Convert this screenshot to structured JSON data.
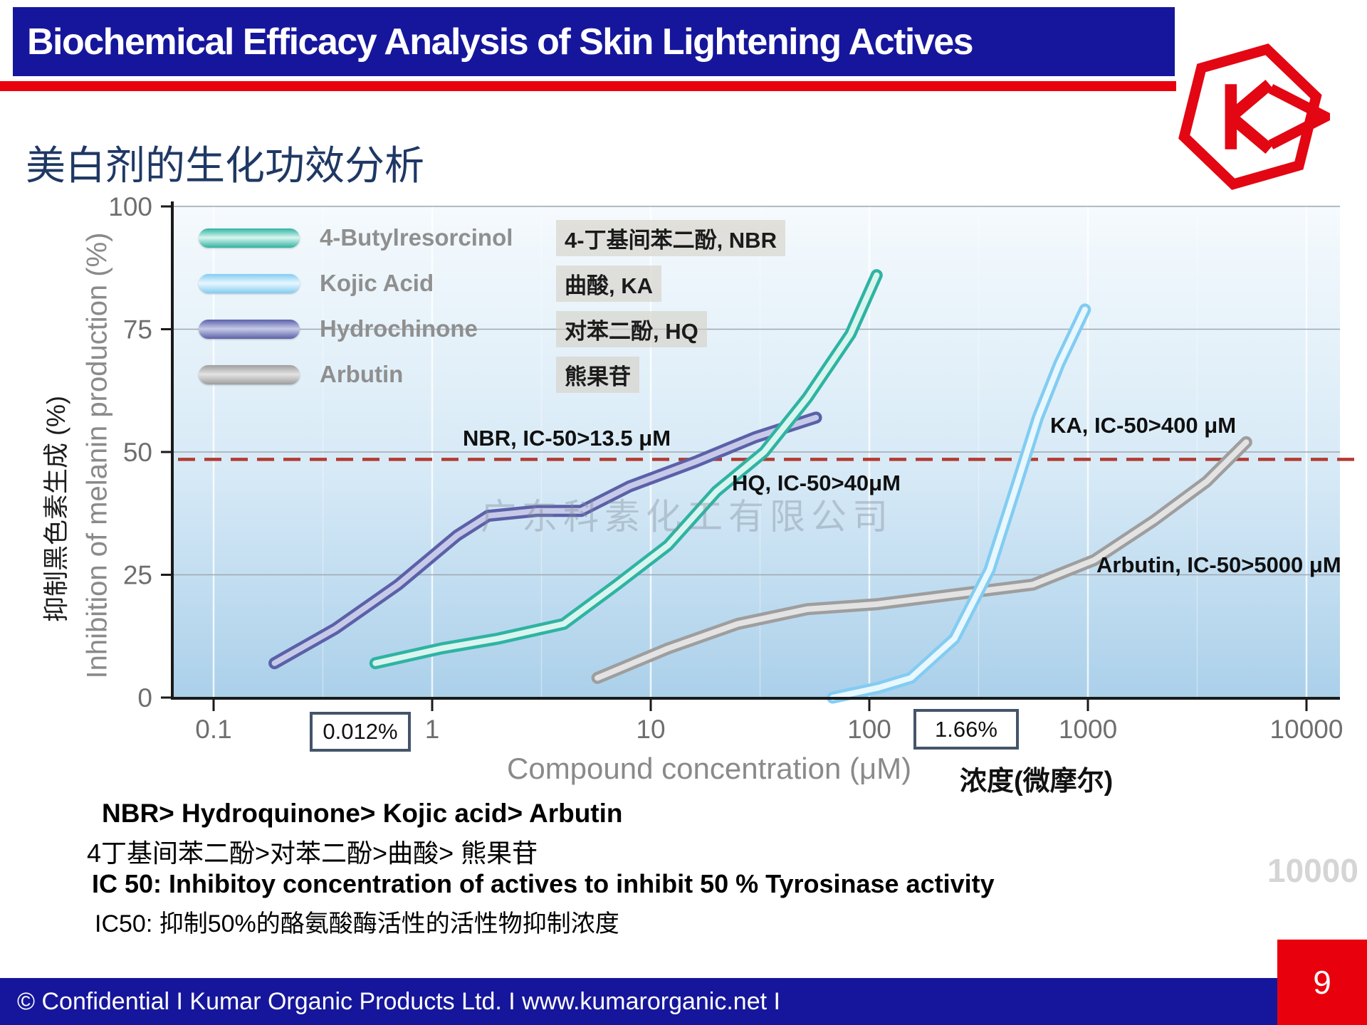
{
  "slide": {
    "title": "Biochemical Efficacy Analysis of Skin Lightening Actives",
    "subtitle_zh": "美白剂的生化功效分析",
    "page_number": "9",
    "footer_text": "© Confidential I Kumar Organic Products Ltd. I www.kumarorganic.net I",
    "ghost_text": "10000"
  },
  "colors": {
    "header_blue": "#16169c",
    "accent_red": "#e8000d",
    "reference_dash_red": "#b23b32",
    "subtitle_navy": "#1f3864",
    "plot_bg_top": "#f5fafd",
    "plot_bg_bottom": "#abd0ea"
  },
  "chart_data": {
    "type": "line",
    "x_scale": "log",
    "xlabel_en": "Compound concentration (μM)",
    "xlabel_zh": "浓度(微摩尔)",
    "ylabel_en": "Inhibition of melanin production (%)",
    "ylabel_zh": "抑制黑色素生成 (%)",
    "x_ticks": [
      "0.1",
      "1",
      "10",
      "100",
      "1000",
      "10000"
    ],
    "y_ticks": [
      "0",
      "25",
      "50",
      "75",
      "100"
    ],
    "xlim": [
      0.1,
      10000
    ],
    "ylim": [
      0,
      100
    ],
    "grid": true,
    "legend_position": "top-left",
    "reference_line": {
      "y": 48.5,
      "style": "dashed",
      "color": "#b23b32"
    },
    "watermark": "广东科素化工有限公司",
    "series": [
      {
        "name": "4-Butylresorcinol",
        "name_zh": "4-丁基间苯二酚, NBR",
        "abbr": "NBR",
        "ic50_uM": 13.5,
        "color": "#2fb3a3",
        "color_light": "#d9f5ef",
        "points": [
          [
            0.55,
            7
          ],
          [
            1.1,
            10
          ],
          [
            2,
            12
          ],
          [
            4,
            15
          ],
          [
            7,
            23
          ],
          [
            12,
            31
          ],
          [
            20,
            42
          ],
          [
            33,
            50
          ],
          [
            52,
            61
          ],
          [
            82,
            74
          ],
          [
            108,
            86
          ]
        ]
      },
      {
        "name": "Kojic Acid",
        "name_zh": "曲酸, KA",
        "abbr": "KA",
        "ic50_uM": 400,
        "color": "#82ccf2",
        "color_light": "#e9f7fe",
        "points": [
          [
            68,
            0
          ],
          [
            110,
            2
          ],
          [
            155,
            4
          ],
          [
            245,
            12
          ],
          [
            355,
            26
          ],
          [
            470,
            43
          ],
          [
            590,
            57
          ],
          [
            740,
            68
          ],
          [
            970,
            79
          ]
        ]
      },
      {
        "name": "Hydrochinone",
        "name_zh": "对苯二酚, HQ",
        "abbr": "HQ",
        "ic50_uM": 40,
        "color": "#5a61a8",
        "color_light": "#c6cae8",
        "points": [
          [
            0.19,
            7
          ],
          [
            0.36,
            14
          ],
          [
            0.7,
            23
          ],
          [
            1.3,
            33
          ],
          [
            1.8,
            37
          ],
          [
            3,
            38
          ],
          [
            4.8,
            38
          ],
          [
            8,
            43
          ],
          [
            16,
            48
          ],
          [
            30,
            53
          ],
          [
            57,
            57
          ]
        ]
      },
      {
        "name": "Arbutin",
        "name_zh": "熊果苷",
        "abbr": "Arbutin",
        "ic50_uM": 5000,
        "color": "#9e9e9e",
        "color_light": "#e3e3e3",
        "points": [
          [
            5.7,
            4
          ],
          [
            12,
            10
          ],
          [
            25,
            15
          ],
          [
            52,
            18
          ],
          [
            108,
            19
          ],
          [
            245,
            21
          ],
          [
            560,
            23
          ],
          [
            1070,
            28
          ],
          [
            2000,
            36
          ],
          [
            3500,
            44
          ],
          [
            5300,
            52
          ]
        ]
      }
    ],
    "annotations": [
      {
        "text": "NBR, IC-50>13.5 μM"
      },
      {
        "text": "HQ, IC-50>40μM"
      },
      {
        "text": "KA, IC-50>400 μM"
      },
      {
        "text": "Arbutin, IC-50>5000 μM"
      }
    ],
    "callouts": [
      {
        "text": "0.012%"
      },
      {
        "text": "1.66%"
      }
    ]
  },
  "summary": {
    "line1": "NBR> Hydroquinone> Kojic acid> Arbutin",
    "line2": "4丁基间苯二酚>对苯二酚>曲酸> 熊果苷",
    "line3": "IC 50: Inhibitoy concentration of actives to inhibit 50 % Tyrosinase activity",
    "line4": "IC50: 抑制50%的酪氨酸酶活性的活性物抑制浓度"
  }
}
